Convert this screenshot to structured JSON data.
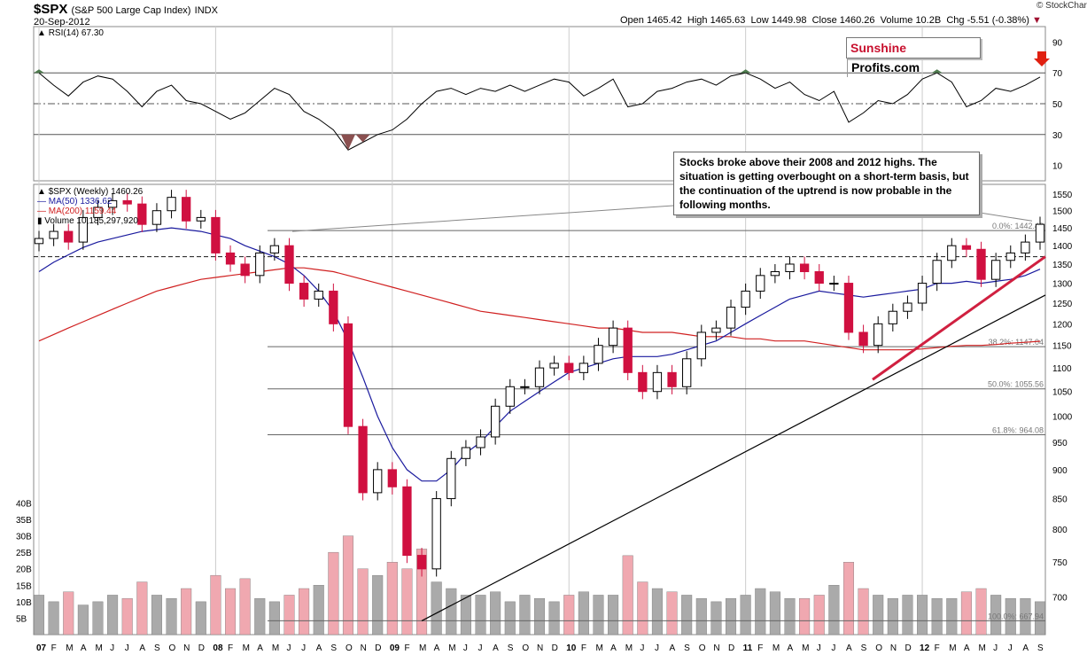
{
  "header": {
    "symbol": "$SPX",
    "name": "(S&P 500 Large Cap Index)",
    "exchange": "INDX",
    "date": "20-Sep-2012",
    "open_label": "Open",
    "open": "1465.42",
    "high_label": "High",
    "high": "1465.63",
    "low_label": "Low",
    "low": "1449.98",
    "close_label": "Close",
    "close": "1460.26",
    "volume_label": "Volume",
    "volume": "10.2B",
    "chg_label": "Chg",
    "chg": "-5.51 (-0.38%)",
    "brand": "© StockCharts.com"
  },
  "logo": {
    "part1": "Sunshine",
    "part2": "Profits.com"
  },
  "annotation": "Stocks broke above their 2008 and 2012 highs. The situation is getting overbought on a short-term basis, but the continuation of the uptrend is now probable in the following months.",
  "colors": {
    "up": "#000000",
    "down": "#d01040",
    "ma50": "#1a1a9e",
    "ma200": "#d02020",
    "vol_up": "#aaaaaa",
    "vol_down": "#f0a8b0",
    "rsi_over": "#4d7a4d",
    "rsi_under": "#8a5050",
    "arrow": "#e02010"
  },
  "chart_data": [
    {
      "type": "line",
      "panel": "RSI",
      "title": "RSI(14) 67.30",
      "ylim": [
        0,
        100
      ],
      "y_ticks": [
        10,
        30,
        50,
        70,
        90
      ],
      "reference_lines": [
        30,
        50,
        70
      ],
      "x": [
        "07",
        "F",
        "M",
        "A",
        "M",
        "J",
        "J",
        "A",
        "S",
        "O",
        "N",
        "D",
        "08",
        "F",
        "M",
        "A",
        "M",
        "J",
        "J",
        "A",
        "S",
        "O",
        "N",
        "D",
        "09",
        "F",
        "M",
        "A",
        "M",
        "J",
        "J",
        "A",
        "S",
        "O",
        "N",
        "D",
        "10",
        "F",
        "M",
        "A",
        "M",
        "J",
        "J",
        "A",
        "S",
        "O",
        "N",
        "D",
        "11",
        "F",
        "M",
        "A",
        "M",
        "J",
        "J",
        "A",
        "S",
        "O",
        "N",
        "D",
        "12",
        "F",
        "M",
        "A",
        "M",
        "J",
        "J",
        "A",
        "S"
      ],
      "values": [
        70,
        62,
        55,
        64,
        68,
        66,
        58,
        48,
        58,
        62,
        52,
        50,
        45,
        40,
        44,
        52,
        60,
        56,
        45,
        40,
        33,
        20,
        25,
        30,
        33,
        40,
        50,
        58,
        60,
        56,
        60,
        58,
        62,
        58,
        62,
        66,
        64,
        55,
        60,
        66,
        48,
        50,
        58,
        60,
        64,
        66,
        62,
        68,
        70,
        66,
        60,
        64,
        56,
        52,
        58,
        38,
        44,
        52,
        50,
        56,
        66,
        70,
        64,
        48,
        52,
        60,
        58,
        62,
        67.3
      ]
    },
    {
      "type": "candlestick",
      "panel": "Price",
      "title": "$SPX (Weekly) 1460.26",
      "series": [
        {
          "name": "MA(50) 1336.62"
        },
        {
          "name": "MA(200) 1159.44"
        },
        {
          "name": "Volume 10,185,297,920"
        }
      ],
      "ylim": [
        650,
        1580
      ],
      "y_scale": "log",
      "y_ticks": [
        700,
        750,
        800,
        850,
        900,
        950,
        1000,
        1050,
        1100,
        1150,
        1200,
        1250,
        1300,
        1350,
        1400,
        1450,
        1500,
        1550
      ],
      "x_ticks": [
        "07",
        "F",
        "M",
        "A",
        "M",
        "J",
        "J",
        "A",
        "S",
        "O",
        "N",
        "D",
        "08",
        "F",
        "M",
        "A",
        "M",
        "J",
        "J",
        "A",
        "S",
        "O",
        "N",
        "D",
        "09",
        "F",
        "M",
        "A",
        "M",
        "J",
        "J",
        "A",
        "S",
        "O",
        "N",
        "D",
        "10",
        "F",
        "M",
        "A",
        "M",
        "J",
        "J",
        "A",
        "S",
        "O",
        "N",
        "D",
        "11",
        "F",
        "M",
        "A",
        "M",
        "J",
        "J",
        "A",
        "S",
        "O",
        "N",
        "D",
        "12",
        "F",
        "M",
        "A",
        "M",
        "J",
        "J",
        "A",
        "S"
      ],
      "close": [
        1420,
        1440,
        1410,
        1480,
        1510,
        1530,
        1520,
        1460,
        1500,
        1540,
        1470,
        1480,
        1380,
        1350,
        1320,
        1380,
        1400,
        1300,
        1260,
        1280,
        1200,
        980,
        860,
        900,
        870,
        760,
        740,
        850,
        920,
        940,
        960,
        1020,
        1060,
        1060,
        1100,
        1110,
        1090,
        1110,
        1150,
        1190,
        1090,
        1050,
        1090,
        1060,
        1120,
        1180,
        1190,
        1240,
        1280,
        1320,
        1330,
        1350,
        1330,
        1300,
        1300,
        1180,
        1150,
        1200,
        1230,
        1250,
        1300,
        1360,
        1400,
        1390,
        1310,
        1360,
        1380,
        1410,
        1460.26
      ],
      "ma50": [
        1330,
        1355,
        1375,
        1395,
        1410,
        1420,
        1430,
        1440,
        1445,
        1450,
        1445,
        1440,
        1430,
        1420,
        1400,
        1385,
        1370,
        1350,
        1320,
        1280,
        1230,
        1160,
        1080,
        1000,
        940,
        900,
        880,
        880,
        900,
        930,
        950,
        980,
        1010,
        1030,
        1050,
        1070,
        1090,
        1100,
        1110,
        1120,
        1125,
        1125,
        1125,
        1130,
        1140,
        1150,
        1160,
        1180,
        1200,
        1220,
        1240,
        1260,
        1270,
        1280,
        1275,
        1270,
        1265,
        1270,
        1275,
        1280,
        1285,
        1300,
        1300,
        1305,
        1300,
        1305,
        1310,
        1320,
        1336.62
      ],
      "ma200": [
        1160,
        1175,
        1190,
        1205,
        1220,
        1235,
        1250,
        1265,
        1280,
        1290,
        1300,
        1310,
        1315,
        1320,
        1325,
        1330,
        1335,
        1340,
        1340,
        1335,
        1330,
        1320,
        1310,
        1300,
        1290,
        1280,
        1270,
        1260,
        1250,
        1240,
        1230,
        1225,
        1220,
        1215,
        1210,
        1205,
        1200,
        1195,
        1190,
        1190,
        1185,
        1180,
        1180,
        1180,
        1175,
        1170,
        1170,
        1170,
        1165,
        1165,
        1160,
        1160,
        1160,
        1155,
        1150,
        1145,
        1140,
        1140,
        1140,
        1140,
        1142,
        1145,
        1148,
        1150,
        1150,
        1152,
        1155,
        1157,
        1159.44
      ],
      "volume_ylim": [
        0,
        42
      ],
      "volume_ticks": [
        "5B",
        "10B",
        "15B",
        "20B",
        "25B",
        "30B",
        "35B",
        "40B"
      ],
      "volume": [
        12,
        10,
        13,
        9,
        10,
        12,
        11,
        16,
        12,
        11,
        14,
        10,
        18,
        14,
        17,
        11,
        10,
        12,
        14,
        15,
        25,
        30,
        20,
        18,
        22,
        20,
        26,
        16,
        14,
        12,
        12,
        13,
        10,
        12,
        11,
        10,
        12,
        13,
        12,
        12,
        24,
        16,
        14,
        13,
        12,
        11,
        10,
        11,
        12,
        14,
        13,
        11,
        11,
        12,
        15,
        22,
        14,
        12,
        11,
        12,
        12,
        11,
        11,
        13,
        14,
        12,
        11,
        11,
        10
      ],
      "fib_levels": [
        {
          "label": "0.0%: 1442.48",
          "value": 1442.48
        },
        {
          "label": "38.2%: 1147.04",
          "value": 1147.04
        },
        {
          "label": "50.0%: 1055.56",
          "value": 1055.56
        },
        {
          "label": "61.8%: 964.08",
          "value": 964.08
        },
        {
          "label": "100.0%: 667.94",
          "value": 667.94
        }
      ],
      "support_level": 1370
    }
  ]
}
